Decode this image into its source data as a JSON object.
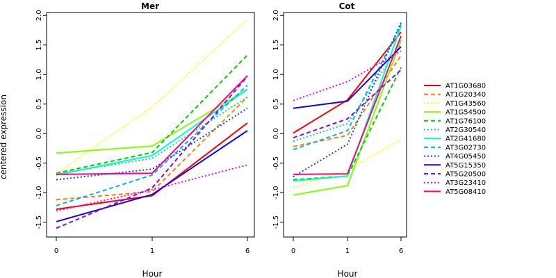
{
  "chart_data": {
    "type": "line",
    "ylabel": "centered expression",
    "xlabel": "Hour",
    "x": [
      "0",
      "1",
      "6"
    ],
    "yticks": [
      "-1.5",
      "-1.0",
      "-0.5",
      "0.0",
      "0.5",
      "1.0",
      "1.5",
      "2.0"
    ],
    "ylim": [
      -1.75,
      2.05
    ],
    "legend_position": "right",
    "series_styles": [
      {
        "name": "AT1G03680",
        "color": "#ff0000",
        "dash": "solid"
      },
      {
        "name": "AT1G20340",
        "color": "#ff8000",
        "dash": "dashed"
      },
      {
        "name": "AT1G43560",
        "color": "#ffff00",
        "dash": "dotted"
      },
      {
        "name": "AT1G54500",
        "color": "#80ff00",
        "dash": "solid"
      },
      {
        "name": "AT1G76100",
        "color": "#00cc00",
        "dash": "dashed"
      },
      {
        "name": "AT2G30540",
        "color": "#00e070",
        "dash": "dotted"
      },
      {
        "name": "AT2G41680",
        "color": "#00ffcc",
        "dash": "solid"
      },
      {
        "name": "AT3G02730",
        "color": "#00b2ee",
        "dash": "dashed"
      },
      {
        "name": "AT4G05450",
        "color": "#0044ff",
        "dash": "dotted"
      },
      {
        "name": "AT5G15350",
        "color": "#1a00e6",
        "dash": "solid"
      },
      {
        "name": "AT5G20500",
        "color": "#8c00ff",
        "dash": "dashed"
      },
      {
        "name": "AT3G23410",
        "color": "#ff00cc",
        "dash": "dotted"
      },
      {
        "name": "AT5G08410",
        "color": "#ff0080",
        "dash": "solid"
      }
    ],
    "panels": [
      {
        "title": "Mer",
        "values": {
          "AT1G03680": [
            -1.28,
            -1.05,
            0.18
          ],
          "AT1G20340": [
            -1.12,
            -0.98,
            0.62
          ],
          "AT1G43560": [
            -0.68,
            0.45,
            1.93
          ],
          "AT1G54500": [
            -0.33,
            -0.21,
            0.75
          ],
          "AT1G76100": [
            -0.67,
            -0.32,
            1.33
          ],
          "AT2G30540": [
            -0.68,
            -0.42,
            0.62
          ],
          "AT2G41680": [
            -0.7,
            -0.37,
            0.75
          ],
          "AT3G02730": [
            -1.22,
            -0.7,
            0.82
          ],
          "AT4G05450": [
            -0.78,
            -0.6,
            0.43
          ],
          "AT5G15350": [
            -1.49,
            -1.03,
            0.05
          ],
          "AT5G20500": [
            -1.6,
            -0.92,
            0.97
          ],
          "AT3G23410": [
            -1.31,
            -0.95,
            -0.53
          ],
          "AT5G08410": [
            -0.69,
            -0.67,
            0.98
          ]
        }
      },
      {
        "title": "Cot",
        "values": {
          "AT1G03680": [
            0.01,
            0.57,
            1.72
          ],
          "AT1G20340": [
            -0.22,
            -0.03,
            1.32
          ],
          "AT1G43560": [
            -0.92,
            -0.62,
            -0.1
          ],
          "AT1G54500": [
            -1.04,
            -0.88,
            1.58
          ],
          "AT1G76100": [
            -0.78,
            -0.72,
            1.12
          ],
          "AT2G30540": [
            -0.13,
            0.17,
            1.52
          ],
          "AT2G41680": [
            -0.8,
            -0.72,
            1.82
          ],
          "AT3G02730": [
            -0.27,
            0.05,
            1.85
          ],
          "AT4G05450": [
            -0.73,
            -0.18,
            1.88
          ],
          "AT5G15350": [
            0.43,
            0.55,
            1.47
          ],
          "AT5G20500": [
            -0.07,
            0.25,
            1.08
          ],
          "AT3G23410": [
            0.56,
            0.88,
            1.4
          ],
          "AT5G08410": [
            -0.69,
            -0.68,
            1.65
          ]
        }
      }
    ]
  }
}
